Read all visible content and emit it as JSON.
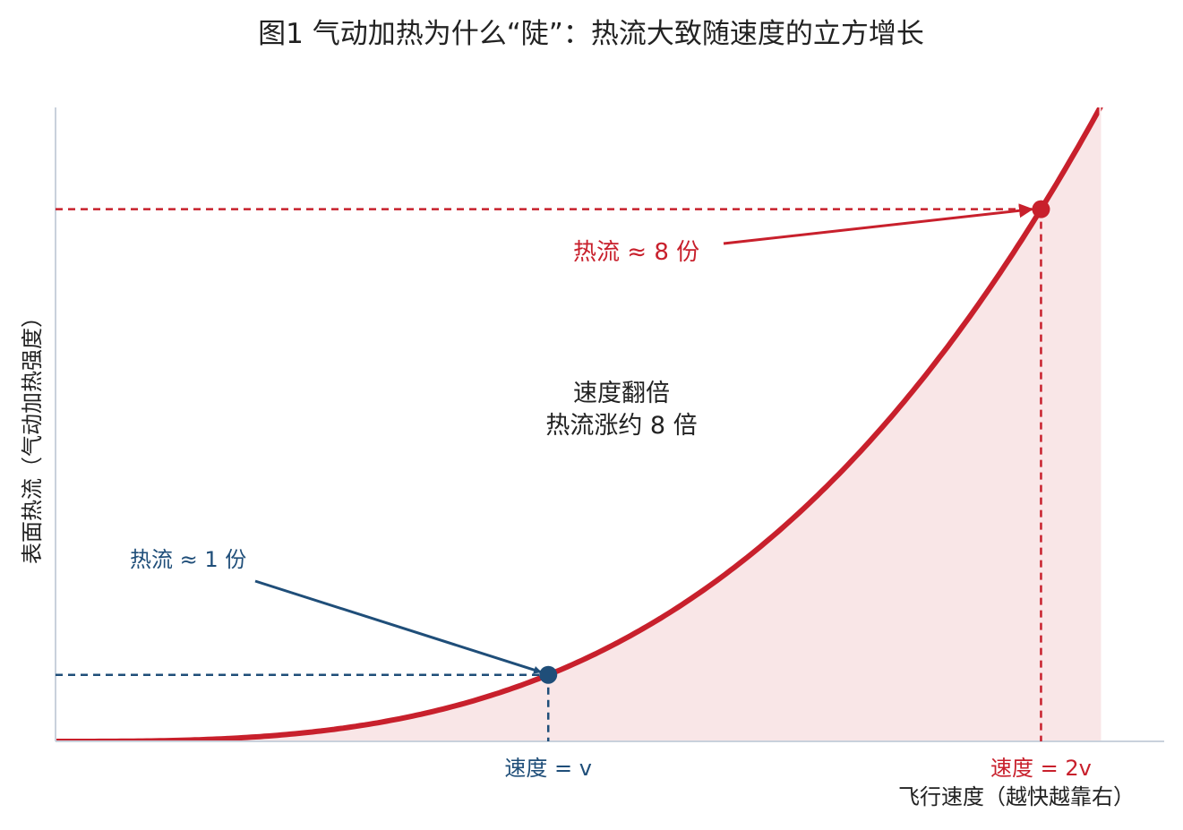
{
  "chart_data": {
    "type": "line",
    "title": "图1  气动加热为什么“陡”：热流大致随速度的立方增长",
    "xlabel": "飞行速度（越快越靠右）",
    "ylabel": "表面热流（气动加热强度）",
    "relationship": "heat_flux ∝ speed^3",
    "series": [
      {
        "x": [
          0.0,
          0.2,
          0.4,
          0.6,
          0.8,
          1.0,
          1.2,
          1.4,
          1.6,
          1.8,
          2.0,
          2.12
        ],
        "y": [
          0.0,
          0.008,
          0.064,
          0.216,
          0.512,
          1.0,
          1.728,
          2.744,
          4.096,
          5.832,
          8.0,
          9.53
        ]
      }
    ],
    "xlim": [
      0,
      2.25
    ],
    "ylim": [
      0,
      9.53
    ],
    "grid": false,
    "points": [
      {
        "x": 1,
        "y": 1,
        "tick_label": "速度 = v",
        "annotation": "热流 ≈ 1 份",
        "color": "#1f4e79"
      },
      {
        "x": 2,
        "y": 8,
        "tick_label": "速度 = 2v",
        "annotation": "热流 ≈ 8 份",
        "color": "#c8202c"
      }
    ],
    "note_lines": [
      "速度翻倍",
      "热流涨约 8 倍"
    ],
    "colors": {
      "curve": "#c8202c",
      "fill": "#f9e6e7",
      "low": "#1f4e79",
      "high": "#c8202c",
      "axis": "#c9d1dc"
    }
  }
}
